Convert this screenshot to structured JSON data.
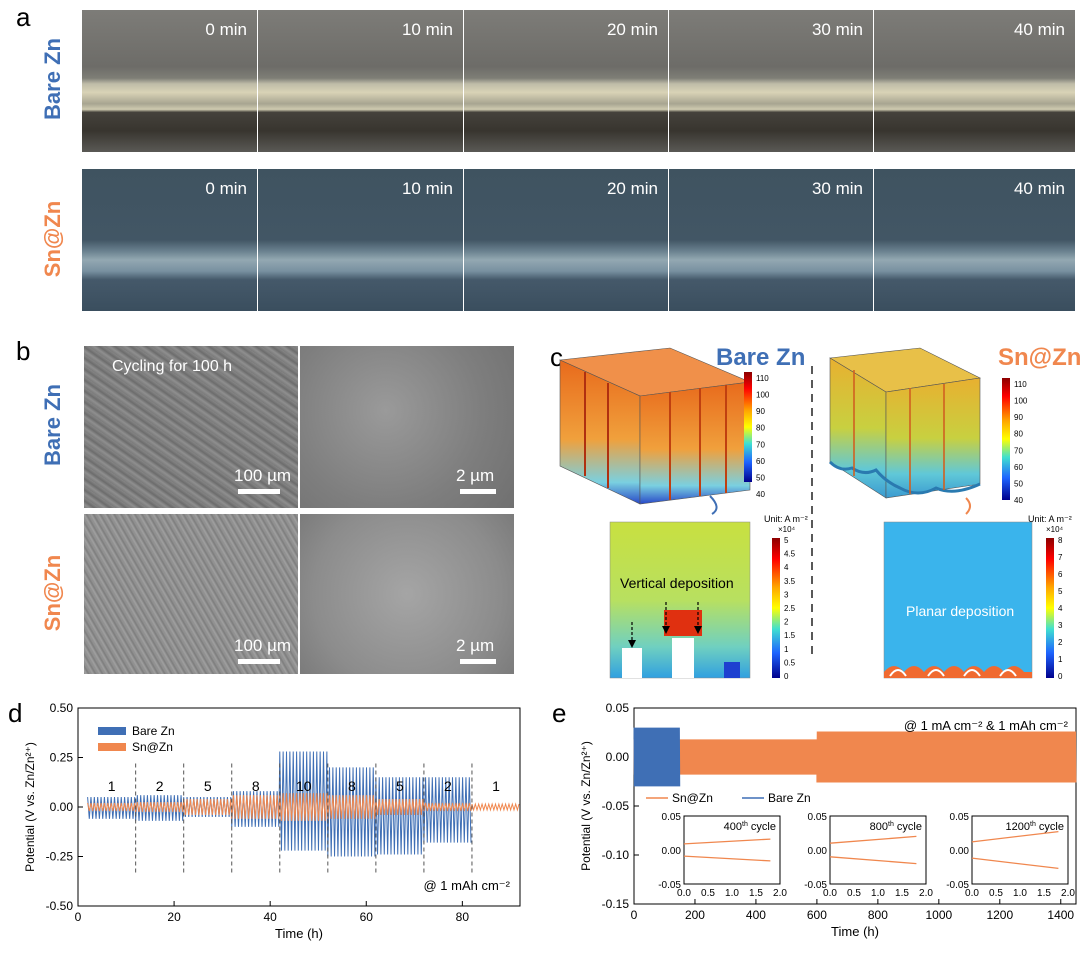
{
  "panels": {
    "a": "a",
    "b": "b",
    "c": "c",
    "d": "d",
    "e": "e"
  },
  "row_labels": {
    "bare": "Bare Zn",
    "sn": "Sn@Zn"
  },
  "panel_a": {
    "times": [
      "0 min",
      "10 min",
      "20 min",
      "30 min",
      "40 min"
    ]
  },
  "panel_b": {
    "title": "Cycling for 100 h",
    "scale_low": "100 µm",
    "scale_high": "2 µm"
  },
  "panel_c": {
    "bare_title": "Bare Zn",
    "sn_title": "Sn@Zn",
    "bare_deposition": "Vertical deposition",
    "sn_deposition": "Planar deposition",
    "unit": "Unit: A m⁻²",
    "multiplier": "×10⁴",
    "bare_3d_ticks": [
      "110",
      "100",
      "90",
      "80",
      "70",
      "60",
      "50",
      "40"
    ],
    "sn_3d_ticks": [
      "110",
      "100",
      "90",
      "80",
      "70",
      "60",
      "50",
      "40"
    ],
    "bare_2d_ticks": [
      "5",
      "4.5",
      "4",
      "3.5",
      "3",
      "2.5",
      "2",
      "1.5",
      "1",
      "0.5",
      "0"
    ],
    "sn_2d_ticks": [
      "8",
      "7",
      "6",
      "5",
      "4",
      "3",
      "2",
      "1",
      "0"
    ],
    "colors": {
      "hot": "#b40000",
      "mid": "#f5e400",
      "cool": "#28b4e6",
      "cold": "#00008c"
    }
  },
  "chart_data": [
    {
      "type": "line",
      "panel": "d",
      "xlabel": "Time (h)",
      "ylabel": "Potential (V vs. Zn/Zn²⁺)",
      "xlim": [
        0,
        92
      ],
      "ylim": [
        -0.5,
        0.5
      ],
      "x_ticks": [
        0,
        20,
        40,
        60,
        80
      ],
      "y_ticks": [
        -0.5,
        -0.25,
        0.0,
        0.25,
        0.5
      ],
      "x_tick_labels": [
        "0",
        "20",
        "40",
        "60",
        "80"
      ],
      "y_tick_labels": [
        "-0.50",
        "-0.25",
        "0.00",
        "0.25",
        "0.50"
      ],
      "annotation": "@ 1 mAh cm⁻²",
      "segment_boundaries": [
        12,
        22,
        32,
        42,
        52,
        62,
        72,
        82
      ],
      "segment_labels": [
        {
          "x": 7,
          "label": "1"
        },
        {
          "x": 17,
          "label": "2"
        },
        {
          "x": 27,
          "label": "5"
        },
        {
          "x": 37,
          "label": "8"
        },
        {
          "x": 47,
          "label": "10"
        },
        {
          "x": 57,
          "label": "8"
        },
        {
          "x": 67,
          "label": "5"
        },
        {
          "x": 77,
          "label": "2"
        },
        {
          "x": 87,
          "label": "1"
        }
      ],
      "series": [
        {
          "name": "Bare Zn",
          "color": "#3f6fb5",
          "envelope": [
            {
              "x0": 2,
              "x1": 12,
              "top": 0.05,
              "bottom": -0.06
            },
            {
              "x0": 12,
              "x1": 22,
              "top": 0.06,
              "bottom": -0.07
            },
            {
              "x0": 22,
              "x1": 32,
              "top": 0.05,
              "bottom": -0.05
            },
            {
              "x0": 32,
              "x1": 42,
              "top": 0.08,
              "bottom": -0.1
            },
            {
              "x0": 42,
              "x1": 52,
              "top": 0.28,
              "bottom": -0.22
            },
            {
              "x0": 52,
              "x1": 62,
              "top": 0.2,
              "bottom": -0.25
            },
            {
              "x0": 62,
              "x1": 72,
              "top": 0.15,
              "bottom": -0.24
            },
            {
              "x0": 72,
              "x1": 82,
              "top": 0.15,
              "bottom": -0.18
            }
          ]
        },
        {
          "name": "Sn@Zn",
          "color": "#f0874e",
          "envelope": [
            {
              "x0": 2,
              "x1": 12,
              "top": 0.02,
              "bottom": -0.02
            },
            {
              "x0": 12,
              "x1": 22,
              "top": 0.025,
              "bottom": -0.025
            },
            {
              "x0": 22,
              "x1": 32,
              "top": 0.04,
              "bottom": -0.04
            },
            {
              "x0": 32,
              "x1": 42,
              "top": 0.06,
              "bottom": -0.06
            },
            {
              "x0": 42,
              "x1": 52,
              "top": 0.07,
              "bottom": -0.07
            },
            {
              "x0": 52,
              "x1": 62,
              "top": 0.06,
              "bottom": -0.06
            },
            {
              "x0": 62,
              "x1": 72,
              "top": 0.04,
              "bottom": -0.04
            },
            {
              "x0": 72,
              "x1": 82,
              "top": 0.02,
              "bottom": -0.02
            },
            {
              "x0": 82,
              "x1": 92,
              "top": 0.015,
              "bottom": -0.015
            }
          ]
        }
      ],
      "legend_placement": "top-left"
    },
    {
      "type": "line",
      "panel": "e",
      "xlabel": "Time (h)",
      "ylabel": "Potential (V vs. Zn/Zn²⁺)",
      "xlim": [
        0,
        1450
      ],
      "ylim": [
        -0.15,
        0.05
      ],
      "x_ticks": [
        0,
        200,
        400,
        600,
        800,
        1000,
        1200,
        1400
      ],
      "y_ticks": [
        -0.15,
        -0.1,
        -0.05,
        0.0,
        0.05
      ],
      "x_tick_labels": [
        "0",
        "200",
        "400",
        "600",
        "800",
        "1000",
        "1200",
        "1400"
      ],
      "y_tick_labels": [
        "-0.15",
        "-0.10",
        "-0.05",
        "0.00",
        "0.05"
      ],
      "annotation": "@ 1 mA cm⁻² & 1 mAh cm⁻²",
      "series": [
        {
          "name": "Sn@Zn",
          "color": "#f0874e",
          "envelope": [
            {
              "x0": 0,
              "x1": 600,
              "top": 0.018,
              "bottom": -0.018
            },
            {
              "x0": 600,
              "x1": 1450,
              "top": 0.026,
              "bottom": -0.026
            }
          ]
        },
        {
          "name": "Bare Zn",
          "color": "#3f6fb5",
          "envelope": [
            {
              "x0": 0,
              "x1": 150,
              "top": 0.03,
              "bottom": -0.03
            }
          ]
        }
      ],
      "legend_placement": "middle-left",
      "insets": [
        {
          "title": "400",
          "title_sup": "th",
          "title_rest": " cycle",
          "xlim": [
            0,
            2
          ],
          "ylim": [
            -0.05,
            0.05
          ],
          "x_tick_labels": [
            "0.0",
            "0.5",
            "1.0",
            "1.5",
            "2.0"
          ],
          "y_tick_labels": [
            "0.05",
            "0.00",
            "-0.05"
          ],
          "upper": [
            [
              0,
              0.009
            ],
            [
              1.8,
              0.016
            ]
          ],
          "lower": [
            [
              0,
              -0.009
            ],
            [
              1.8,
              -0.016
            ]
          ]
        },
        {
          "title": "800",
          "title_sup": "th",
          "title_rest": " cycle",
          "xlim": [
            0,
            2
          ],
          "ylim": [
            -0.05,
            0.05
          ],
          "x_tick_labels": [
            "0.0",
            "0.5",
            "1.0",
            "1.5",
            "2.0"
          ],
          "y_tick_labels": [
            "0.05",
            "0.00",
            "-0.05"
          ],
          "upper": [
            [
              0,
              0.01
            ],
            [
              1.8,
              0.02
            ]
          ],
          "lower": [
            [
              0,
              -0.01
            ],
            [
              1.8,
              -0.02
            ]
          ]
        },
        {
          "title": "1200",
          "title_sup": "th",
          "title_rest": " cycle",
          "xlim": [
            0,
            2
          ],
          "ylim": [
            -0.05,
            0.05
          ],
          "x_tick_labels": [
            "0.0",
            "0.5",
            "1.0",
            "1.5",
            "2.0"
          ],
          "y_tick_labels": [
            "0.05",
            "0.00",
            "-0.05"
          ],
          "upper": [
            [
              0,
              0.012
            ],
            [
              1.8,
              0.027
            ]
          ],
          "lower": [
            [
              0,
              -0.012
            ],
            [
              1.8,
              -0.027
            ]
          ]
        }
      ]
    }
  ]
}
